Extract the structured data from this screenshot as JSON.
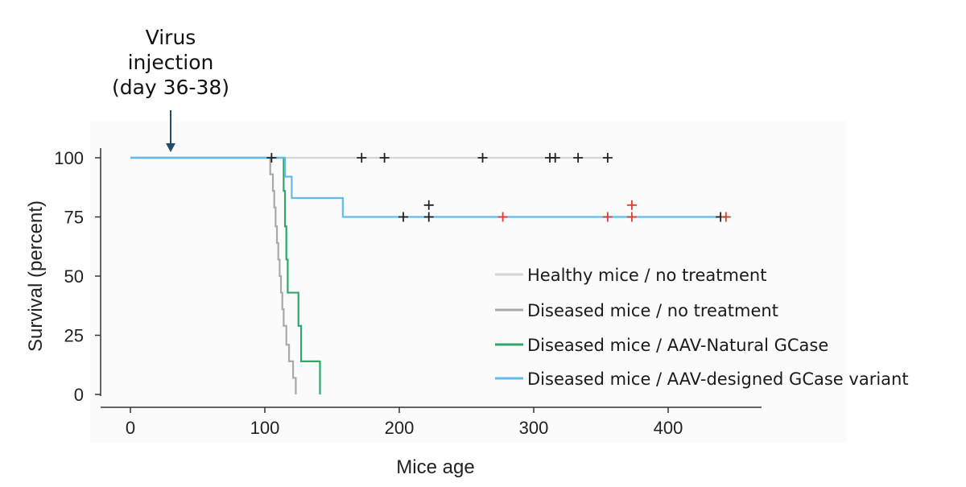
{
  "annotation": {
    "lines": [
      "Virus",
      "injection",
      "(day 36-38)"
    ]
  },
  "chart_data": {
    "type": "line",
    "subtype": "kaplan-meier step",
    "title": "",
    "xlabel": "Mice age",
    "ylabel": "Survival (percent)",
    "xlim": [
      0,
      460
    ],
    "ylim": [
      0,
      100
    ],
    "xticks": [
      0,
      100,
      200,
      300,
      400
    ],
    "yticks": [
      0,
      25,
      50,
      75,
      100
    ],
    "grid": false,
    "legend_position": "right",
    "series": [
      {
        "name": "Healthy mice / no treatment",
        "color": "#d4d4d4",
        "x": [
          0,
          355
        ],
        "y": [
          100,
          100
        ]
      },
      {
        "name": "Diseased mice / no treatment",
        "color": "#a9a9a9",
        "x": [
          0,
          103,
          104,
          106,
          107,
          108,
          109,
          110,
          111,
          112,
          113,
          114,
          116,
          118,
          121,
          123
        ],
        "y": [
          100,
          100,
          93,
          86,
          79,
          71,
          64,
          57,
          50,
          43,
          36,
          29,
          21,
          14,
          7,
          0
        ]
      },
      {
        "name": "Diseased mice / AAV-Natural GCase",
        "color": "#2ea86a",
        "x": [
          0,
          113,
          114,
          115,
          116,
          117,
          125,
          127,
          140,
          141
        ],
        "y": [
          100,
          100,
          86,
          71,
          57,
          43,
          29,
          14,
          14,
          0
        ]
      },
      {
        "name": "Diseased mice / AAV-designed GCase variant",
        "color": "#64b9ec",
        "x": [
          0,
          115,
          120,
          158,
          445
        ],
        "y": [
          100,
          92,
          83,
          75,
          75
        ]
      }
    ],
    "censor_marks": [
      {
        "x": 105,
        "y": 100,
        "color": "#222222"
      },
      {
        "x": 172,
        "y": 100,
        "color": "#222222"
      },
      {
        "x": 189,
        "y": 100,
        "color": "#222222"
      },
      {
        "x": 262,
        "y": 100,
        "color": "#222222"
      },
      {
        "x": 312,
        "y": 100,
        "color": "#222222"
      },
      {
        "x": 316,
        "y": 100,
        "color": "#222222"
      },
      {
        "x": 333,
        "y": 100,
        "color": "#222222"
      },
      {
        "x": 355,
        "y": 100,
        "color": "#222222"
      },
      {
        "x": 203,
        "y": 75,
        "color": "#222222"
      },
      {
        "x": 222,
        "y": 75,
        "color": "#222222"
      },
      {
        "x": 222,
        "y": 80,
        "color": "#222222"
      },
      {
        "x": 439,
        "y": 75,
        "color": "#222222"
      },
      {
        "x": 277,
        "y": 75,
        "color": "#e53935"
      },
      {
        "x": 355,
        "y": 75,
        "color": "#e53935"
      },
      {
        "x": 373,
        "y": 75,
        "color": "#e53935"
      },
      {
        "x": 373,
        "y": 80,
        "color": "#e53935"
      },
      {
        "x": 443,
        "y": 75,
        "color": "#e53935"
      }
    ],
    "injection_marker": {
      "x": 30,
      "label_ref": "annotation"
    }
  }
}
